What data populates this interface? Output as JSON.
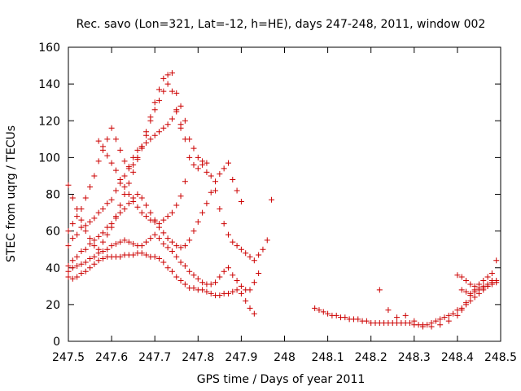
{
  "chart_data": {
    "type": "scatter",
    "title": "Rec. savo (Lon=321, Lat=-12, h=HE), days 247-248, 2011, window 002",
    "xlabel": "GPS time / Days of year 2011",
    "ylabel": "STEC from uqrg / TECUs",
    "xlim": [
      247.5,
      248.5
    ],
    "ylim": [
      0,
      160
    ],
    "xticks": [
      247.5,
      247.6,
      247.7,
      247.8,
      247.9,
      248.0,
      248.1,
      248.2,
      248.3,
      248.4,
      248.5
    ],
    "xtick_labels": [
      "247.5",
      "247.6",
      "247.7",
      "247.8",
      "247.9",
      "248",
      "248.1",
      "248.2",
      "248.3",
      "248.4",
      "248.5"
    ],
    "yticks": [
      0,
      20,
      40,
      60,
      80,
      100,
      120,
      140,
      160
    ],
    "ytick_labels": [
      "0",
      "20",
      "40",
      "60",
      "80",
      "100",
      "120",
      "140",
      "160"
    ],
    "grid": false,
    "legend": "none",
    "marker": "plus",
    "color": "#cc0000",
    "series": [
      {
        "x": [
          247.5,
          247.51,
          247.52,
          247.53,
          247.54,
          247.55,
          247.56,
          247.57,
          247.58,
          247.59,
          247.6,
          247.61,
          247.62,
          247.63,
          247.64,
          247.65,
          247.66,
          247.67,
          247.68,
          247.69,
          247.7,
          247.71,
          247.72,
          247.73,
          247.74,
          247.75,
          247.76,
          247.77,
          247.78,
          247.79,
          247.8,
          247.81,
          247.82,
          247.83,
          247.84,
          247.85,
          247.86,
          247.87,
          247.88,
          247.89,
          247.9,
          247.91,
          247.92,
          247.93
        ],
        "y": [
          35,
          34,
          35,
          37,
          38,
          40,
          42,
          44,
          45,
          46,
          46,
          46,
          46,
          47,
          47,
          47,
          48,
          48,
          47,
          46,
          46,
          45,
          43,
          40,
          38,
          35,
          33,
          31,
          29,
          29,
          28,
          28,
          27,
          26,
          25,
          25,
          26,
          26,
          27,
          28,
          26,
          22,
          18,
          15
        ]
      },
      {
        "x": [
          247.5,
          247.51,
          247.52,
          247.53,
          247.54,
          247.55,
          247.56,
          247.57,
          247.58,
          247.59,
          247.6,
          247.61,
          247.62,
          247.63,
          247.64,
          247.65,
          247.66,
          247.67,
          247.68,
          247.69,
          247.7,
          247.71,
          247.72,
          247.73,
          247.74,
          247.75,
          247.76,
          247.77,
          247.78,
          247.79,
          247.8,
          247.81,
          247.82,
          247.83,
          247.84,
          247.85,
          247.86,
          247.87,
          247.88,
          247.89,
          247.9,
          247.91,
          247.92,
          247.93,
          247.94
        ],
        "y": [
          38,
          40,
          41,
          42,
          43,
          45,
          46,
          48,
          49,
          50,
          52,
          53,
          54,
          55,
          54,
          53,
          52,
          52,
          54,
          56,
          58,
          56,
          53,
          51,
          49,
          46,
          43,
          41,
          38,
          36,
          34,
          32,
          31,
          31,
          32,
          35,
          38,
          40,
          36,
          33,
          30,
          28,
          28,
          32,
          37
        ]
      },
      {
        "x": [
          247.5,
          247.51,
          247.52,
          247.53,
          247.54,
          247.55,
          247.56,
          247.57,
          247.58,
          247.59,
          247.6,
          247.61,
          247.62,
          247.63,
          247.64,
          247.65,
          247.66,
          247.67,
          247.68,
          247.69,
          247.7,
          247.71,
          247.72,
          247.73,
          247.74,
          247.75,
          247.76,
          247.77,
          247.78,
          247.79,
          247.8,
          247.81,
          247.82,
          247.83,
          247.84,
          247.85,
          247.86,
          247.87,
          247.88,
          247.89,
          247.9
        ],
        "y": [
          41,
          44,
          46,
          49,
          50,
          53,
          55,
          57,
          59,
          62,
          64,
          67,
          70,
          72,
          75,
          78,
          80,
          78,
          74,
          70,
          66,
          62,
          59,
          56,
          54,
          52,
          51,
          52,
          55,
          60,
          65,
          70,
          75,
          81,
          87,
          91,
          94,
          97,
          88,
          82,
          76
        ]
      },
      {
        "x": [
          247.5,
          247.51,
          247.52,
          247.53,
          247.54,
          247.55,
          247.56,
          247.57,
          247.58,
          247.59,
          247.6,
          247.61,
          247.62,
          247.63,
          247.64,
          247.65,
          247.66,
          247.67,
          247.68,
          247.69,
          247.7,
          247.71,
          247.72,
          247.73,
          247.74,
          247.75,
          247.76,
          247.77,
          247.78,
          247.79,
          247.8,
          247.81,
          247.82,
          247.83,
          247.84,
          247.85,
          247.86,
          247.87,
          247.88,
          247.89,
          247.9,
          247.91,
          247.92,
          247.93,
          247.94,
          247.95,
          247.96,
          247.97
        ],
        "y": [
          52,
          56,
          58,
          62,
          63,
          65,
          67,
          70,
          72,
          75,
          77,
          82,
          86,
          90,
          95,
          100,
          104,
          106,
          108,
          110,
          112,
          114,
          116,
          118,
          121,
          125,
          118,
          110,
          100,
          96,
          94,
          98,
          97,
          90,
          82,
          72,
          64,
          58,
          54,
          52,
          50,
          48,
          46,
          44,
          47,
          50,
          55,
          77
        ]
      },
      {
        "x": [
          247.5,
          247.51,
          247.52,
          247.53,
          247.54,
          247.55,
          247.56,
          247.57,
          247.58,
          247.59,
          247.6,
          247.61,
          247.62,
          247.63,
          247.64,
          247.65,
          247.66,
          247.67,
          247.68,
          247.69,
          247.7,
          247.71,
          247.72,
          247.73,
          247.74,
          247.75,
          247.76,
          247.77,
          247.78,
          247.79,
          247.8,
          247.81,
          247.82
        ],
        "y": [
          60,
          64,
          68,
          72,
          78,
          84,
          90,
          98,
          104,
          110,
          116,
          110,
          104,
          98,
          94,
          96,
          100,
          105,
          112,
          120,
          126,
          131,
          136,
          140,
          146,
          135,
          128,
          120,
          110,
          105,
          100,
          96,
          92
        ]
      },
      {
        "x": [
          247.5,
          247.51,
          247.52,
          247.53,
          247.54,
          247.55,
          247.56,
          247.57,
          247.58,
          247.59,
          247.6,
          247.61,
          247.62,
          247.63,
          247.64,
          247.65,
          247.66,
          247.67,
          247.68,
          247.69,
          247.7,
          247.71,
          247.72,
          247.73,
          247.74,
          247.75,
          247.76
        ],
        "y": [
          85,
          78,
          72,
          66,
          60,
          56,
          52,
          50,
          54,
          58,
          62,
          68,
          74,
          80,
          86,
          92,
          99,
          106,
          114,
          122,
          130,
          137,
          143,
          145,
          136,
          126,
          116
        ]
      },
      {
        "x": [
          247.57,
          247.58,
          247.59,
          247.6,
          247.61,
          247.62,
          247.63,
          247.64,
          247.65,
          247.66,
          247.67,
          247.68,
          247.69,
          247.7,
          247.71,
          247.72,
          247.73,
          247.74,
          247.75,
          247.76,
          247.77
        ],
        "y": [
          109,
          106,
          101,
          97,
          93,
          88,
          84,
          80,
          76,
          73,
          70,
          68,
          66,
          65,
          64,
          66,
          68,
          70,
          74,
          79,
          87
        ]
      },
      {
        "x": [
          248.07,
          248.08,
          248.09,
          248.1,
          248.11,
          248.12,
          248.13,
          248.14,
          248.15,
          248.16,
          248.17,
          248.18,
          248.19,
          248.2,
          248.21,
          248.22,
          248.23,
          248.24,
          248.25,
          248.26,
          248.27,
          248.28,
          248.29,
          248.3,
          248.31,
          248.32,
          248.33,
          248.34,
          248.35,
          248.36,
          248.37,
          248.38,
          248.39,
          248.4,
          248.41,
          248.42,
          248.43,
          248.44,
          248.45,
          248.46,
          248.47,
          248.48
        ],
        "y": [
          18,
          17,
          16,
          15,
          14,
          14,
          13,
          13,
          12,
          12,
          12,
          11,
          11,
          10,
          10,
          10,
          10,
          10,
          10,
          10,
          10,
          10,
          10,
          9,
          9,
          9,
          9,
          10,
          11,
          12,
          13,
          14,
          15,
          17,
          18,
          20,
          22,
          24,
          26,
          28,
          30,
          33
        ]
      },
      {
        "x": [
          248.22,
          248.24,
          248.26,
          248.28,
          248.3,
          248.32,
          248.34,
          248.36,
          248.38,
          248.4,
          248.41,
          248.42,
          248.43,
          248.44,
          248.45,
          248.46,
          248.47,
          248.48,
          248.49
        ],
        "y": [
          28,
          17,
          13,
          14,
          11,
          8,
          8,
          9,
          11,
          14,
          17,
          21,
          25,
          28,
          29,
          30,
          31,
          32,
          33
        ]
      },
      {
        "x": [
          248.4,
          248.41,
          248.42,
          248.43,
          248.44,
          248.45,
          248.46,
          248.47,
          248.48,
          248.49
        ],
        "y": [
          36,
          35,
          33,
          31,
          30,
          31,
          33,
          35,
          37,
          44
        ]
      },
      {
        "x": [
          248.41,
          248.42,
          248.43,
          248.44,
          248.45,
          248.46,
          248.47,
          248.48,
          248.49
        ],
        "y": [
          28,
          27,
          26,
          27,
          28,
          29,
          30,
          31,
          32
        ]
      }
    ]
  }
}
